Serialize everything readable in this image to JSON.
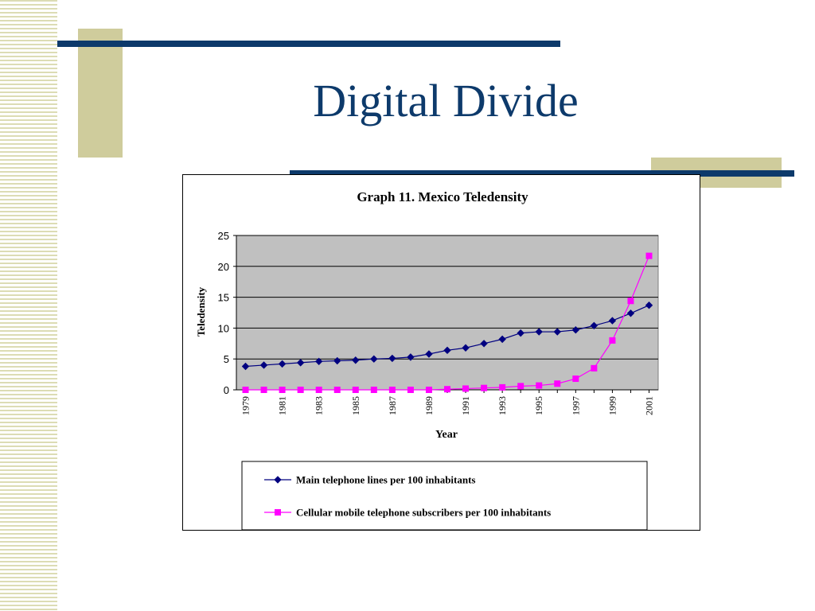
{
  "slide": {
    "title": "Digital Divide"
  },
  "chart_data": {
    "type": "line",
    "title": "Graph 11. Mexico Teledensity",
    "xlabel": "Year",
    "ylabel": "Teledensity",
    "ylim": [
      0,
      25
    ],
    "yticks": [
      0,
      5,
      10,
      15,
      20,
      25
    ],
    "xtick_labels": [
      "1979",
      "1981",
      "1983",
      "1985",
      "1987",
      "1989",
      "1991",
      "1993",
      "1995",
      "1997",
      "1999",
      "2001"
    ],
    "x": [
      1979,
      1980,
      1981,
      1982,
      1983,
      1984,
      1985,
      1986,
      1987,
      1988,
      1989,
      1990,
      1991,
      1992,
      1993,
      1994,
      1995,
      1996,
      1997,
      1998,
      1999,
      2000,
      2001
    ],
    "grid": true,
    "legend_position": "bottom",
    "series": [
      {
        "name": "Main telephone lines per 100 inhabitants",
        "color": "#000080",
        "marker": "diamond",
        "values": [
          3.8,
          4.0,
          4.2,
          4.4,
          4.6,
          4.7,
          4.8,
          5.0,
          5.1,
          5.3,
          5.8,
          6.4,
          6.8,
          7.5,
          8.2,
          9.2,
          9.4,
          9.4,
          9.7,
          10.4,
          11.2,
          12.4,
          13.7
        ]
      },
      {
        "name": "Cellular mobile telephone subscribers per 100 inhabitants",
        "color": "#ff00ff",
        "marker": "square",
        "values": [
          0.0,
          0.0,
          0.0,
          0.0,
          0.0,
          0.0,
          0.0,
          0.0,
          0.0,
          0.0,
          0.0,
          0.1,
          0.2,
          0.3,
          0.4,
          0.6,
          0.7,
          1.0,
          1.8,
          3.5,
          8.0,
          14.4,
          21.7
        ]
      }
    ]
  }
}
